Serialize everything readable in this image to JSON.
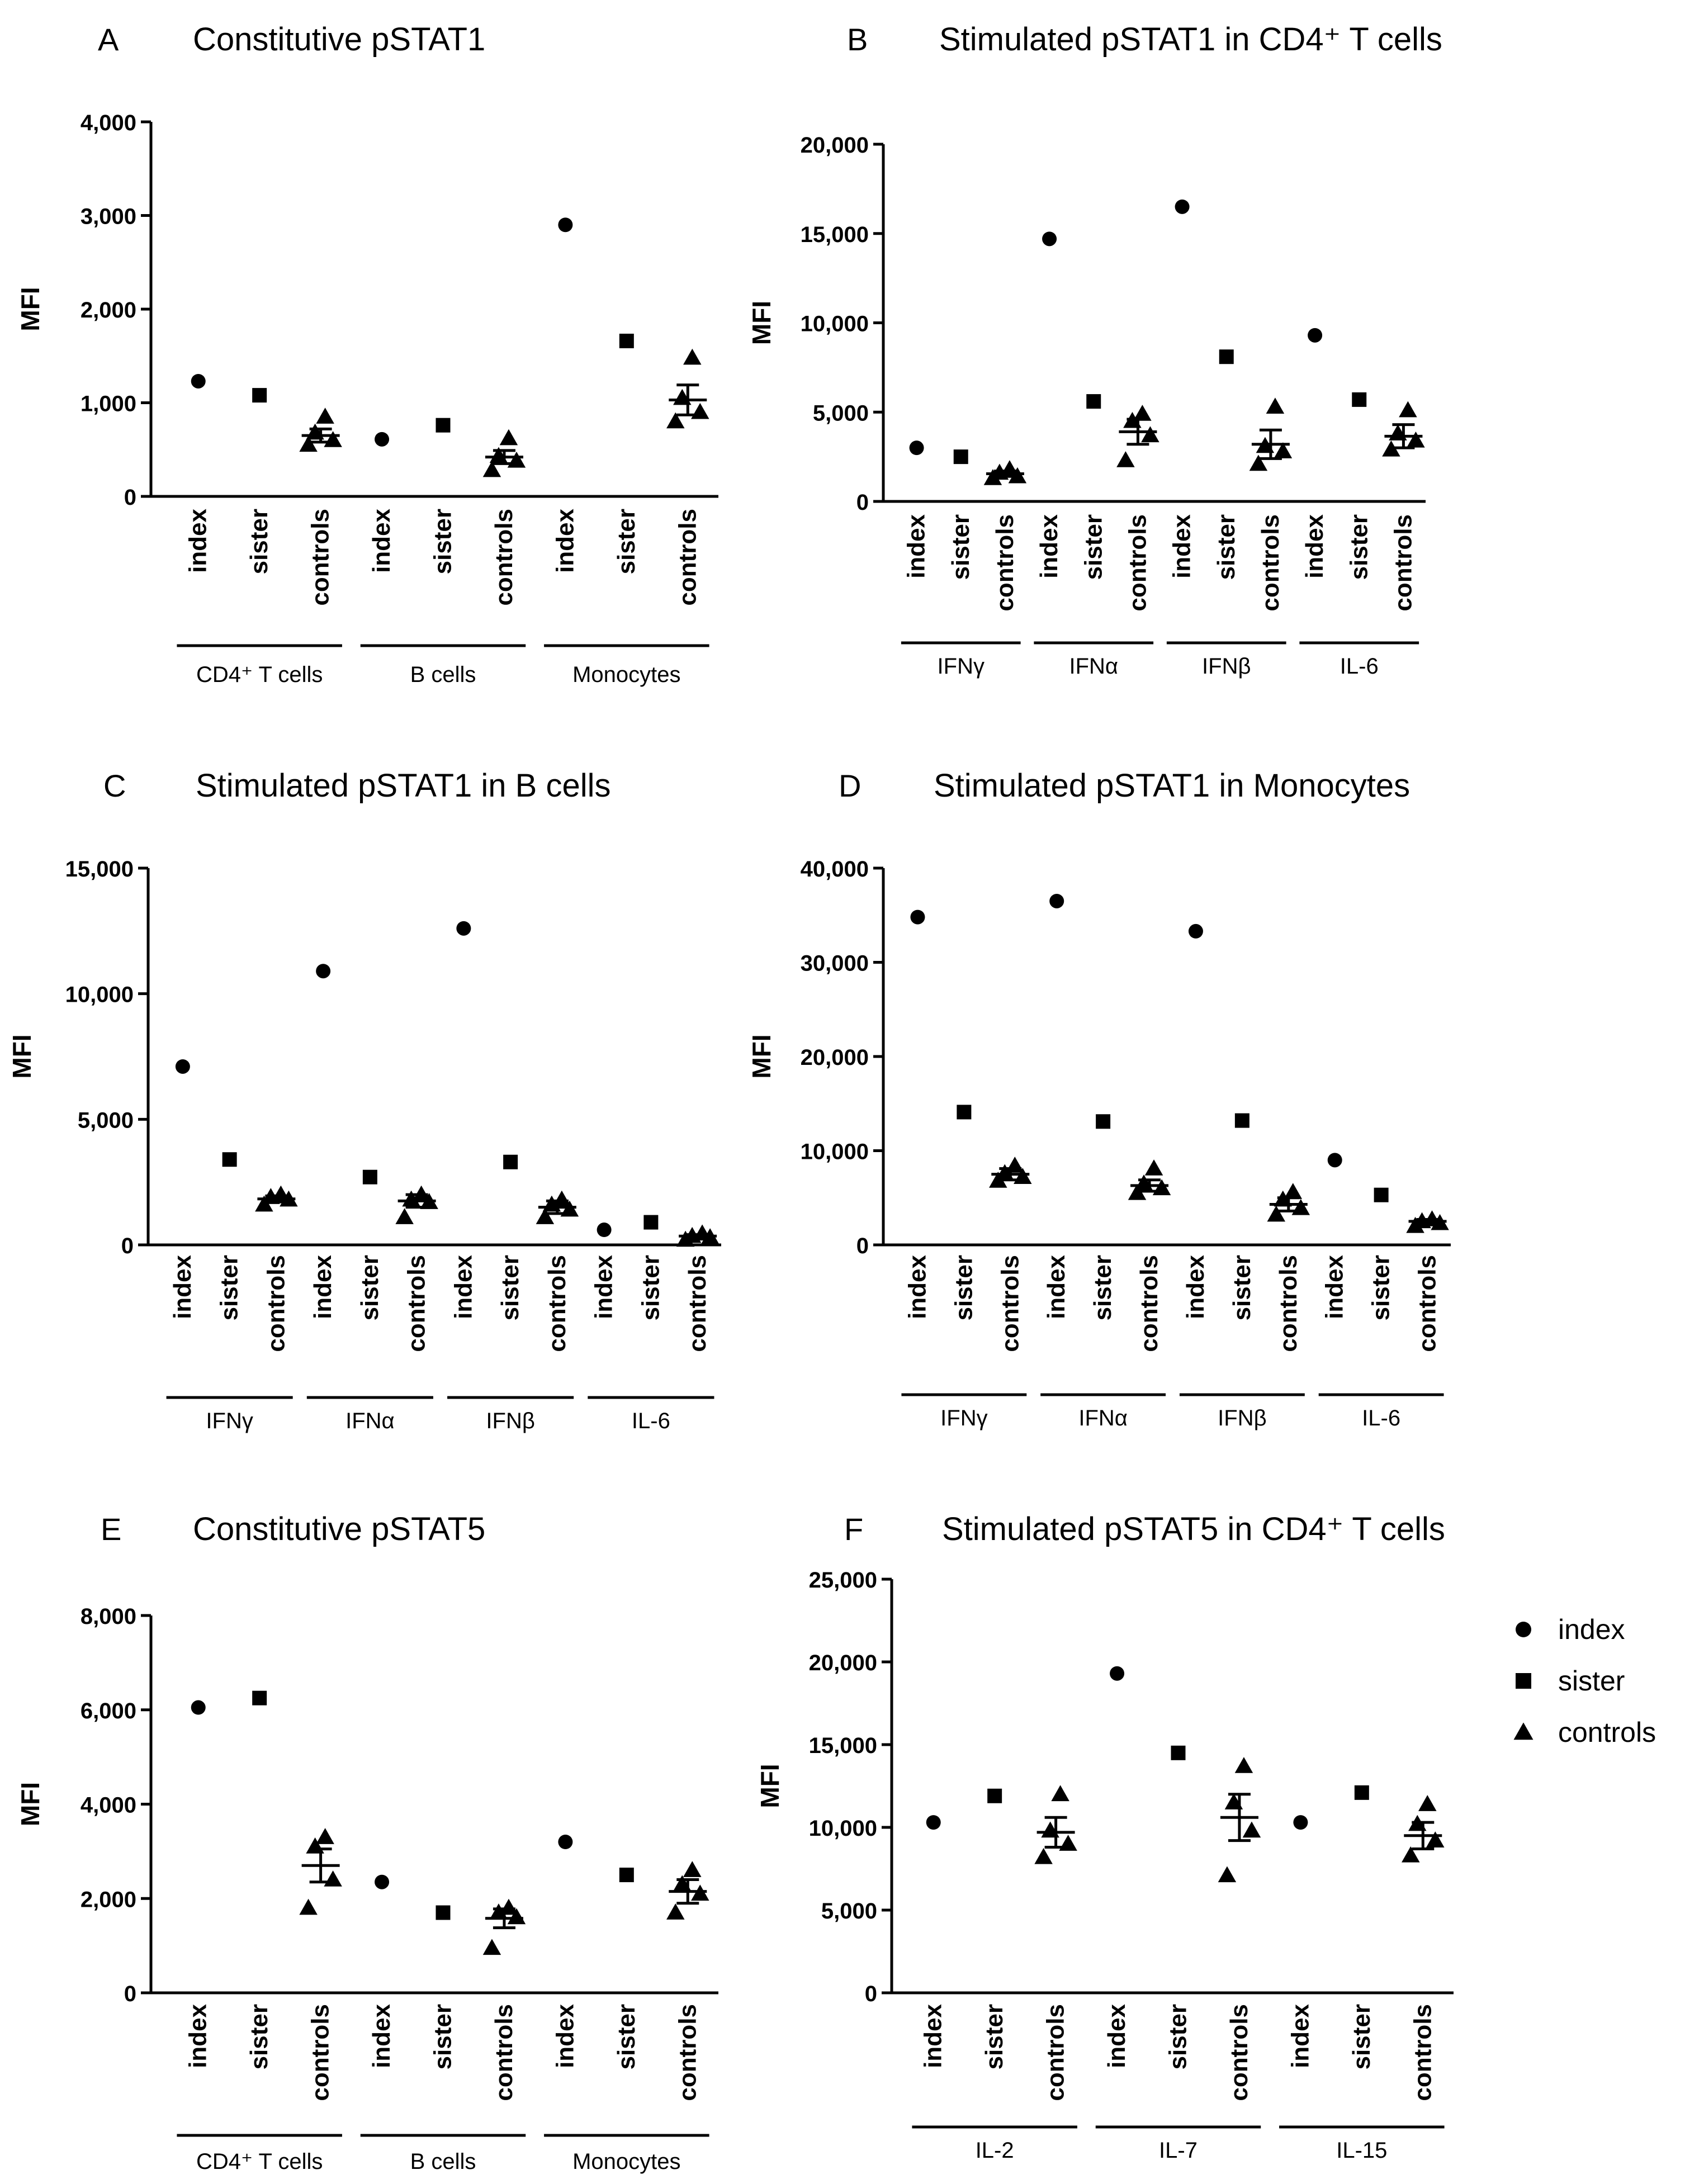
{
  "legend": [
    {
      "label": "index",
      "marker": "circle"
    },
    {
      "label": "sister",
      "marker": "square"
    },
    {
      "label": "controls",
      "marker": "triangle"
    }
  ],
  "chart_data": [
    {
      "letter": "A",
      "title": "Constitutive pSTAT1",
      "type": "scatter",
      "ylabel": "MFI",
      "ylim": [
        0,
        4000
      ],
      "yticks": [
        "0",
        "1,000",
        "2,000",
        "3,000",
        "4,000"
      ],
      "groups": [
        {
          "label": "CD4⁺ T cells",
          "categories": [
            "index",
            "sister",
            "controls"
          ],
          "index": [
            1230
          ],
          "sister": [
            1080
          ],
          "controls": [
            550,
            600,
            680,
            850
          ],
          "mean": 650,
          "sem": 70
        },
        {
          "label": "B cells",
          "categories": [
            "index",
            "sister",
            "controls"
          ],
          "index": [
            610
          ],
          "sister": [
            760
          ],
          "controls": [
            280,
            380,
            430,
            620
          ],
          "mean": 420,
          "sem": 70
        },
        {
          "label": "Monocytes",
          "categories": [
            "index",
            "sister",
            "controls"
          ],
          "index": [
            2900
          ],
          "sister": [
            1660
          ],
          "controls": [
            800,
            900,
            1050,
            1480
          ],
          "mean": 1030,
          "sem": 160
        }
      ]
    },
    {
      "letter": "B",
      "title": "Stimulated pSTAT1 in CD4⁺ T cells",
      "type": "scatter",
      "ylabel": "MFI",
      "ylim": [
        0,
        20000
      ],
      "yticks": [
        "0",
        "5,000",
        "10,000",
        "15,000",
        "20,000"
      ],
      "groups": [
        {
          "label": "IFNγ",
          "categories": [
            "index",
            "sister",
            "controls"
          ],
          "index": [
            3000
          ],
          "sister": [
            2500
          ],
          "controls": [
            1300,
            1400,
            1600,
            1800
          ],
          "mean": 1550,
          "sem": 150
        },
        {
          "label": "IFNα",
          "categories": [
            "index",
            "sister",
            "controls"
          ],
          "index": [
            14700
          ],
          "sister": [
            5600
          ],
          "controls": [
            2300,
            3700,
            4500,
            4900
          ],
          "mean": 3900,
          "sem": 700
        },
        {
          "label": "IFNβ",
          "categories": [
            "index",
            "sister",
            "controls"
          ],
          "index": [
            16500
          ],
          "sister": [
            8100
          ],
          "controls": [
            2100,
            2800,
            3100,
            5300
          ],
          "mean": 3200,
          "sem": 800
        },
        {
          "label": "IL-6",
          "categories": [
            "index",
            "sister",
            "controls"
          ],
          "index": [
            9300
          ],
          "sister": [
            5700
          ],
          "controls": [
            2900,
            3400,
            3800,
            5100
          ],
          "mean": 3650,
          "sem": 650
        }
      ]
    },
    {
      "letter": "C",
      "title": "Stimulated pSTAT1 in B cells",
      "type": "scatter",
      "ylabel": "MFI",
      "ylim": [
        0,
        15000
      ],
      "yticks": [
        "0",
        "5,000",
        "10,000",
        "15,000"
      ],
      "groups": [
        {
          "label": "IFNγ",
          "categories": [
            "index",
            "sister",
            "controls"
          ],
          "index": [
            7100
          ],
          "sister": [
            3400
          ],
          "controls": [
            1600,
            1800,
            1900,
            2000
          ],
          "mean": 1830,
          "sem": 120
        },
        {
          "label": "IFNα",
          "categories": [
            "index",
            "sister",
            "controls"
          ],
          "index": [
            10900
          ],
          "sister": [
            2700
          ],
          "controls": [
            1100,
            1700,
            1800,
            2000
          ],
          "mean": 1750,
          "sem": 250
        },
        {
          "label": "IFNβ",
          "categories": [
            "index",
            "sister",
            "controls"
          ],
          "index": [
            12600
          ],
          "sister": [
            3300
          ],
          "controls": [
            1100,
            1400,
            1600,
            1800
          ],
          "mean": 1500,
          "sem": 250
        },
        {
          "label": "IL-6",
          "categories": [
            "index",
            "sister",
            "controls"
          ],
          "index": [
            600
          ],
          "sister": [
            900
          ],
          "controls": [
            200,
            300,
            350,
            450
          ],
          "mean": 350,
          "sem": 60
        }
      ]
    },
    {
      "letter": "D",
      "title": "Stimulated pSTAT1 in Monocytes",
      "type": "scatter",
      "ylabel": "MFI",
      "ylim": [
        0,
        40000
      ],
      "yticks": [
        "0",
        "10,000",
        "20,000",
        "30,000",
        "40,000"
      ],
      "groups": [
        {
          "label": "IFNγ",
          "categories": [
            "index",
            "sister",
            "controls"
          ],
          "index": [
            34800
          ],
          "sister": [
            14100
          ],
          "controls": [
            6800,
            7200,
            7600,
            8400
          ],
          "mean": 7500,
          "sem": 600
        },
        {
          "label": "IFNα",
          "categories": [
            "index",
            "sister",
            "controls"
          ],
          "index": [
            36500
          ],
          "sister": [
            13100
          ],
          "controls": [
            5500,
            6000,
            6500,
            8100
          ],
          "mean": 6300,
          "sem": 600
        },
        {
          "label": "IFNβ",
          "categories": [
            "index",
            "sister",
            "controls"
          ],
          "index": [
            33300
          ],
          "sister": [
            13200
          ],
          "controls": [
            3200,
            3900,
            4800,
            5600
          ],
          "mean": 4300,
          "sem": 700
        },
        {
          "label": "IL-6",
          "categories": [
            "index",
            "sister",
            "controls"
          ],
          "index": [
            9000
          ],
          "sister": [
            5300
          ],
          "controls": [
            2000,
            2300,
            2500,
            2700
          ],
          "mean": 2500,
          "sem": 200
        }
      ]
    },
    {
      "letter": "E",
      "title": "Constitutive pSTAT5",
      "type": "scatter",
      "ylabel": "MFI",
      "ylim": [
        0,
        8000
      ],
      "yticks": [
        "0",
        "2,000",
        "4,000",
        "6,000",
        "8,000"
      ],
      "groups": [
        {
          "label": "CD4⁺ T cells",
          "categories": [
            "index",
            "sister",
            "controls"
          ],
          "index": [
            6050
          ],
          "sister": [
            6250
          ],
          "controls": [
            1800,
            2400,
            3100,
            3300
          ],
          "mean": 2700,
          "sem": 350
        },
        {
          "label": "B cells",
          "categories": [
            "index",
            "sister",
            "controls"
          ],
          "index": [
            2350
          ],
          "sister": [
            1700
          ],
          "controls": [
            950,
            1600,
            1700,
            1800
          ],
          "mean": 1580,
          "sem": 200
        },
        {
          "label": "Monocytes",
          "categories": [
            "index",
            "sister",
            "controls"
          ],
          "index": [
            3200
          ],
          "sister": [
            2500
          ],
          "controls": [
            1700,
            2100,
            2300,
            2600
          ],
          "mean": 2150,
          "sem": 250
        }
      ]
    },
    {
      "letter": "F",
      "title": "Stimulated pSTAT5 in CD4⁺ T cells",
      "type": "scatter",
      "ylabel": "MFI",
      "ylim": [
        0,
        25000
      ],
      "yticks": [
        "0",
        "5,000",
        "10,000",
        "15,000",
        "20,000",
        "25,000"
      ],
      "groups": [
        {
          "label": "IL-2",
          "categories": [
            "index",
            "sister",
            "controls"
          ],
          "index": [
            10300
          ],
          "sister": [
            11900
          ],
          "controls": [
            8200,
            9000,
            9800,
            12000
          ],
          "mean": 9700,
          "sem": 900
        },
        {
          "label": "IL-7",
          "categories": [
            "index",
            "sister",
            "controls"
          ],
          "index": [
            19300
          ],
          "sister": [
            14500
          ],
          "controls": [
            7100,
            9800,
            11500,
            13700
          ],
          "mean": 10600,
          "sem": 1400
        },
        {
          "label": "IL-15",
          "categories": [
            "index",
            "sister",
            "controls"
          ],
          "index": [
            10300
          ],
          "sister": [
            12100
          ],
          "controls": [
            8300,
            9200,
            10200,
            11400
          ],
          "mean": 9500,
          "sem": 800
        }
      ]
    }
  ]
}
